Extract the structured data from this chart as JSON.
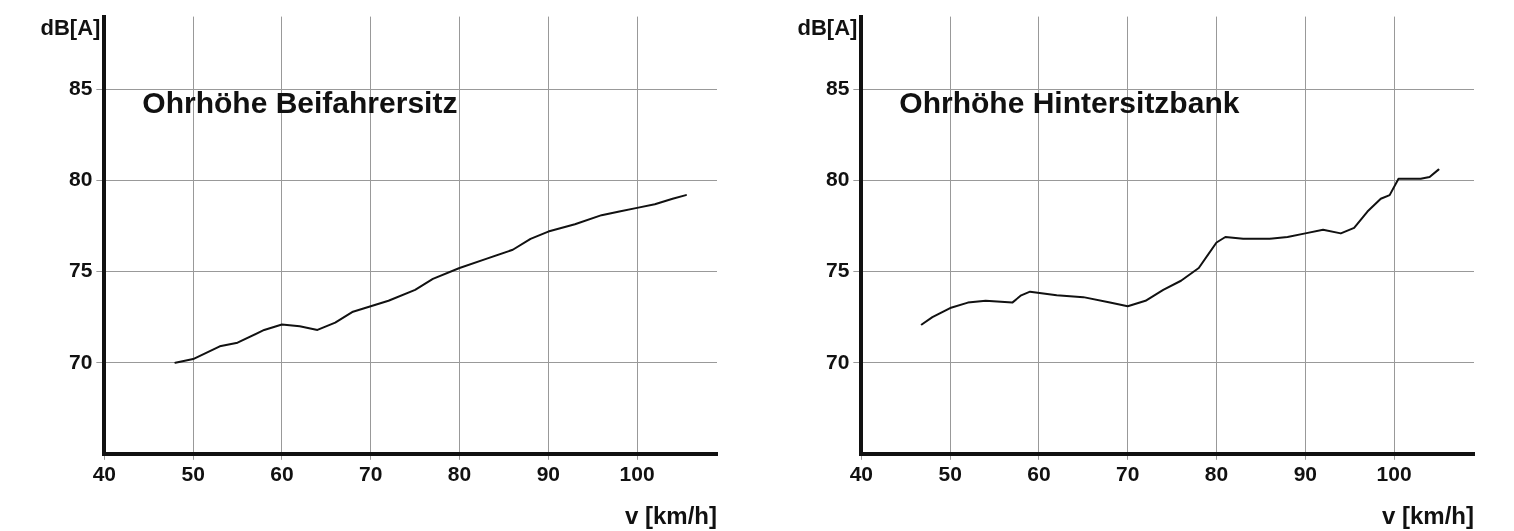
{
  "chart_data": [
    {
      "type": "line",
      "title": "Ohrhöhe Beifahrersitz",
      "xlabel": "v [km/h]",
      "ylabel": "dB[A]",
      "xlim": [
        40,
        109
      ],
      "ylim": [
        65,
        89
      ],
      "xticks": [
        40,
        50,
        60,
        70,
        80,
        90,
        100
      ],
      "yticks": [
        70,
        75,
        80,
        85
      ],
      "grid": true,
      "marker": "none",
      "line_style": "solid",
      "series": [
        {
          "color": "#111111",
          "x": [
            48,
            50,
            53,
            55,
            58,
            60,
            62,
            64,
            66,
            68,
            70,
            72,
            75,
            77,
            80,
            83,
            86,
            88,
            90,
            93,
            96,
            98,
            100,
            102,
            104,
            105.5
          ],
          "values": [
            70,
            70.2,
            70.9,
            71.1,
            71.8,
            72.1,
            72,
            71.8,
            72.2,
            72.8,
            73.1,
            73.4,
            74,
            74.6,
            75.2,
            75.7,
            76.2,
            76.8,
            77.2,
            77.6,
            78.1,
            78.3,
            78.5,
            78.7,
            79,
            79.2
          ]
        }
      ]
    },
    {
      "type": "line",
      "title": "Ohrhöhe Hintersitzbank",
      "xlabel": "v [km/h]",
      "ylabel": "dB[A]",
      "xlim": [
        40,
        109
      ],
      "ylim": [
        65,
        89
      ],
      "xticks": [
        40,
        50,
        60,
        70,
        80,
        90,
        100
      ],
      "yticks": [
        70,
        75,
        80,
        85
      ],
      "grid": true,
      "marker": "none",
      "line_style": "solid",
      "series": [
        {
          "color": "#111111",
          "x": [
            46.8,
            48,
            50,
            52,
            54,
            57,
            58,
            59,
            62,
            65,
            68,
            70,
            72,
            74,
            76,
            78,
            80,
            81,
            83,
            86,
            88,
            90,
            92,
            94,
            95.5,
            97,
            98.5,
            99.5,
            100.5,
            103,
            104,
            105
          ],
          "values": [
            72.1,
            72.5,
            73,
            73.3,
            73.4,
            73.3,
            73.7,
            73.9,
            73.7,
            73.6,
            73.3,
            73.1,
            73.4,
            74,
            74.5,
            75.2,
            76.6,
            76.9,
            76.8,
            76.8,
            76.9,
            77.1,
            77.3,
            77.1,
            77.4,
            78.3,
            79,
            79.2,
            80.1,
            80.1,
            80.2,
            80.6
          ]
        }
      ]
    }
  ]
}
